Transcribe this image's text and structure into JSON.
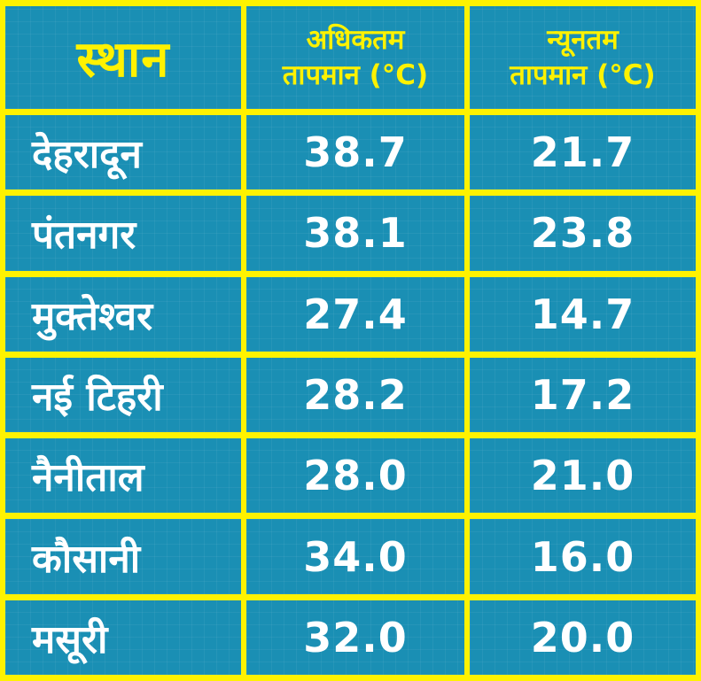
{
  "table": {
    "headers": {
      "place": "स्थान",
      "max_line1": "अधिकतम",
      "max_line2": "तापमान (°C)",
      "min_line1": "न्यूनतम",
      "min_line2": "तापमान (°C)"
    },
    "rows": [
      {
        "place": "देहरादून",
        "max": "38.7",
        "min": "21.7"
      },
      {
        "place": "पंतनगर",
        "max": "38.1",
        "min": "23.8"
      },
      {
        "place": "मुक्तेश्वर",
        "max": "27.4",
        "min": "14.7"
      },
      {
        "place": "नई टिहरी",
        "max": "28.2",
        "min": "17.2"
      },
      {
        "place": "नैनीताल",
        "max": "28.0",
        "min": "21.0"
      },
      {
        "place": "कौसानी",
        "max": "34.0",
        "min": "16.0"
      },
      {
        "place": "मसूरी",
        "max": "32.0",
        "min": "20.0"
      }
    ]
  },
  "colors": {
    "background": "#fff200",
    "cell": "#1a8fb4",
    "header_text": "#fff200",
    "body_text": "#ffffff"
  },
  "chart_data": {
    "type": "table",
    "columns": [
      "स्थान",
      "अधिकतम तापमान (°C)",
      "न्यूनतम तापमान (°C)"
    ],
    "rows": [
      [
        "देहरादून",
        38.7,
        21.7
      ],
      [
        "पंतनगर",
        38.1,
        23.8
      ],
      [
        "मुक्तेश्वर",
        27.4,
        14.7
      ],
      [
        "नई टिहरी",
        28.2,
        17.2
      ],
      [
        "नैनीताल",
        28.0,
        21.0
      ],
      [
        "कौसानी",
        34.0,
        16.0
      ],
      [
        "मसूरी",
        32.0,
        20.0
      ]
    ]
  }
}
